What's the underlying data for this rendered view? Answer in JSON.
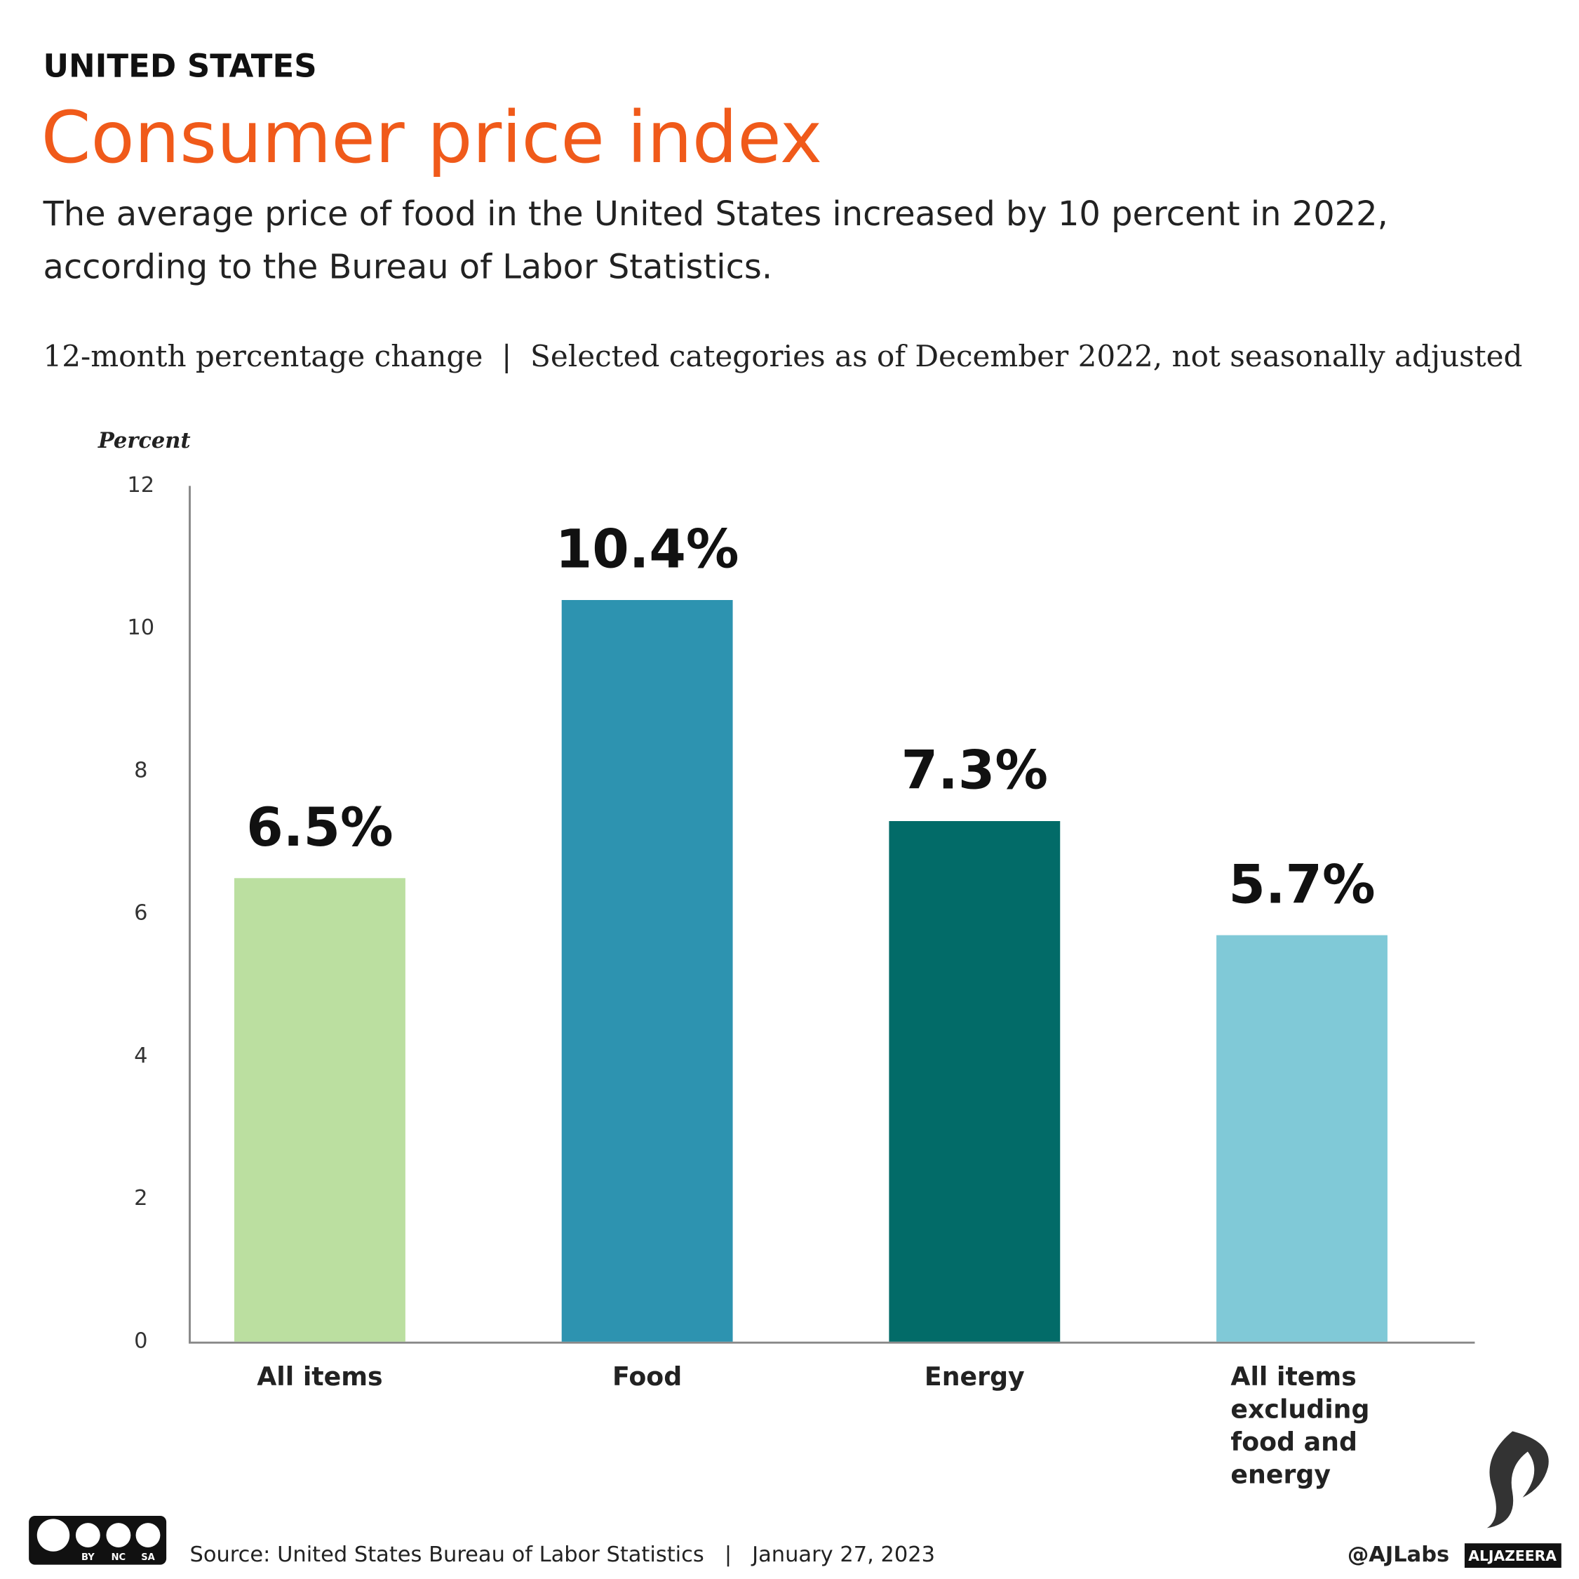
{
  "chart_data": {
    "type": "bar",
    "kicker": "UNITED STATES",
    "title": "Consumer price index",
    "subtitle": "The average price of food in the United States increased by 10 percent in 2022, according to the Bureau of Labor Statistics.",
    "note": "12-month percentage change  |  Selected categories as of December 2022, not seasonally adjusted",
    "y_label": "Percent",
    "categories": [
      "All items",
      "Food",
      "Energy",
      "All items excluding food and energy"
    ],
    "values": [
      6.5,
      10.4,
      7.3,
      5.7
    ],
    "value_labels": [
      "6.5%",
      "10.4%",
      "7.3%",
      "5.7%"
    ],
    "colors": [
      "#bbdfa0",
      "#2d93b0",
      "#026b68",
      "#80c9d7"
    ],
    "ylim": [
      0,
      12
    ],
    "yticks": [
      0,
      2,
      4,
      6,
      8,
      10,
      12
    ],
    "grid": false,
    "source": "Source: United States Bureau of Labor Statistics   |   January 27, 2023",
    "license": [
      "BY",
      "NC",
      "SA"
    ],
    "handle": "@AJLabs",
    "brand": "ALJAZEERA"
  }
}
